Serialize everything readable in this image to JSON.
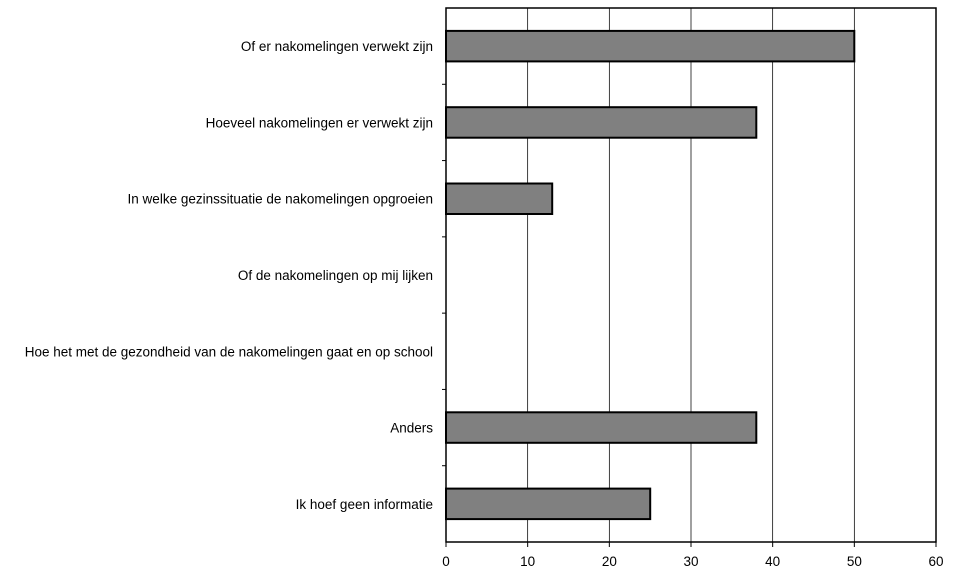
{
  "chart_data": {
    "type": "bar",
    "orientation": "horizontal",
    "title": "",
    "xlabel": "",
    "ylabel": "",
    "categories": [
      "Of er nakomelingen verwekt zijn",
      "Hoeveel nakomelingen er verwekt zijn",
      "In welke gezinssituatie de nakomelingen opgroeien",
      "Of de nakomelingen op mij lijken",
      "Hoe het met de gezondheid van de nakomelingen gaat en op school",
      "Anders",
      "Ik hoef geen informatie"
    ],
    "values": [
      50,
      38,
      13,
      0,
      0,
      38,
      25
    ],
    "xlim": [
      0,
      60
    ],
    "xticks": [
      0,
      10,
      20,
      30,
      40,
      50,
      60
    ],
    "grid": "vertical",
    "legend": "none",
    "colors": {
      "bar_fill": "#808080",
      "bar_stroke": "#000000",
      "grid": "#000000",
      "axis": "#000000"
    }
  }
}
